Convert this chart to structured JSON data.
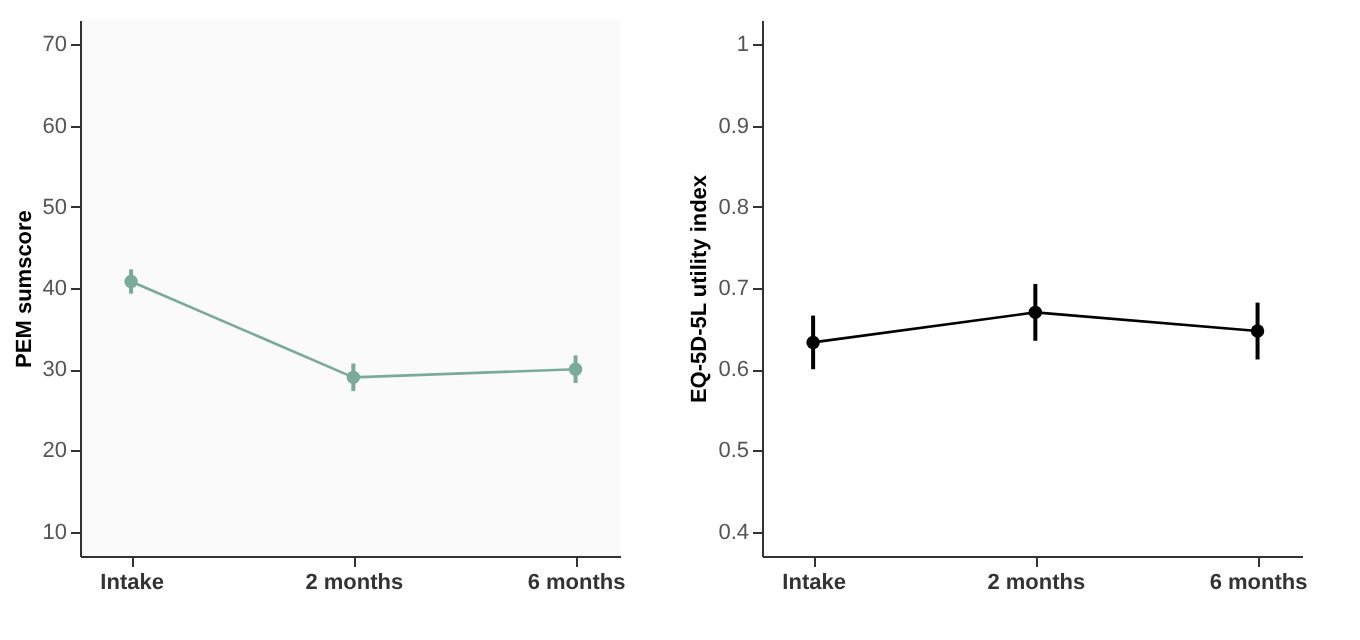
{
  "chart_data": [
    {
      "type": "line",
      "ylabel": "PEM sumscore",
      "categories": [
        "Intake",
        "2 months",
        "6 months"
      ],
      "series": [
        {
          "color": "#7aab9a",
          "values": [
            40.8,
            29.0,
            30.0
          ],
          "errors": [
            1.5,
            1.7,
            1.7
          ]
        }
      ],
      "ylim": [
        7,
        73
      ],
      "yticks": [
        10,
        20,
        30,
        40,
        50,
        60,
        70
      ],
      "grid": false,
      "marker": "circle",
      "line_style": "solid"
    },
    {
      "type": "line",
      "ylabel": "EQ-5D-5L utility index",
      "categories": [
        "Intake",
        "2 months",
        "6 months"
      ],
      "series": [
        {
          "color": "#000000",
          "values": [
            0.633,
            0.67,
            0.647
          ],
          "errors": [
            0.033,
            0.035,
            0.035
          ]
        }
      ],
      "ylim": [
        0.37,
        1.03
      ],
      "yticks": [
        0.4,
        0.5,
        0.6,
        0.7,
        0.8,
        0.9,
        1
      ],
      "grid": false,
      "marker": "circle",
      "line_style": "solid"
    }
  ]
}
